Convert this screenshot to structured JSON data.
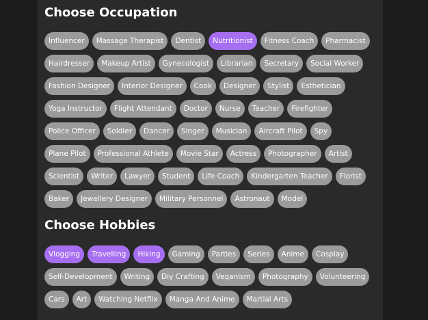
{
  "sections": [
    {
      "title": "Choose Occupation",
      "rows": [
        [
          {
            "label": "Influencer"
          },
          {
            "label": "Massage Therapist"
          },
          {
            "label": "Dentist"
          },
          {
            "label": "Nutritionist",
            "selected": true
          },
          {
            "label": "Fitness Coach"
          },
          {
            "label": "Pharmacist"
          }
        ],
        [
          {
            "label": "Hairdresser"
          },
          {
            "label": "Makeup Artist"
          },
          {
            "label": "Gynecologist"
          },
          {
            "label": "Librarian"
          },
          {
            "label": "Secretary"
          },
          {
            "label": "Social Worker"
          }
        ],
        [
          {
            "label": "Fashion Designer"
          },
          {
            "label": "Interior Designer"
          },
          {
            "label": "Cook"
          },
          {
            "label": "Designer"
          },
          {
            "label": "Stylist"
          },
          {
            "label": "Esthetician"
          }
        ],
        [
          {
            "label": "Yoga Instructor"
          },
          {
            "label": "Flight Attendant"
          },
          {
            "label": "Doctor"
          },
          {
            "label": "Nurse"
          },
          {
            "label": "Teacher"
          },
          {
            "label": "Firefighter"
          }
        ],
        [
          {
            "label": "Police Officer"
          },
          {
            "label": "Soldier"
          },
          {
            "label": "Dancer"
          },
          {
            "label": "Singer"
          },
          {
            "label": "Musician"
          },
          {
            "label": "Aircraft Pilot"
          },
          {
            "label": "Spy"
          }
        ],
        [
          {
            "label": "Plane Pilot"
          },
          {
            "label": "Professional Athlete"
          },
          {
            "label": "Movie Star"
          },
          {
            "label": "Actress"
          },
          {
            "label": "Photographer"
          },
          {
            "label": "Artist"
          }
        ],
        [
          {
            "label": "Scientist"
          },
          {
            "label": "Writer"
          },
          {
            "label": "Lawyer"
          },
          {
            "label": "Student"
          },
          {
            "label": "Life Coach"
          },
          {
            "label": "Kindergarten Teacher"
          },
          {
            "label": "Florist"
          }
        ],
        [
          {
            "label": "Baker"
          },
          {
            "label": "Jewellery Designer"
          },
          {
            "label": "Military Personnel"
          },
          {
            "label": "Astronaut"
          },
          {
            "label": "Model"
          }
        ]
      ]
    },
    {
      "title": "Choose Hobbies",
      "rows": [
        [
          {
            "label": "Vlogging",
            "selected": true
          },
          {
            "label": "Travelling",
            "selected": true
          },
          {
            "label": "Hiking",
            "selected": true
          },
          {
            "label": "Gaming"
          },
          {
            "label": "Parties"
          },
          {
            "label": "Series"
          },
          {
            "label": "Anime"
          },
          {
            "label": "Cosplay"
          }
        ],
        [
          {
            "label": "Self-Development"
          },
          {
            "label": "Writing"
          },
          {
            "label": "Diy Crafting"
          },
          {
            "label": "Veganism"
          },
          {
            "label": "Photography"
          },
          {
            "label": "Volunteering"
          }
        ],
        [
          {
            "label": "Cars"
          },
          {
            "label": "Art"
          },
          {
            "label": "Watching Netflix"
          },
          {
            "label": "Manga And Anime"
          },
          {
            "label": "Martial Arts"
          }
        ]
      ]
    }
  ]
}
